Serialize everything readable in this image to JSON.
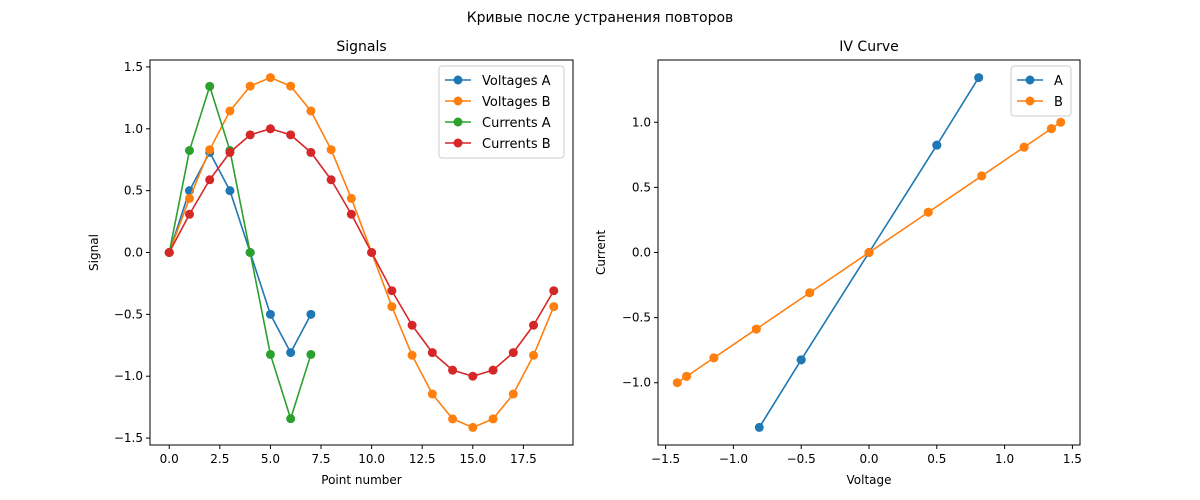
{
  "suptitle": "Кривые после устранения повторов",
  "chart_data": [
    {
      "type": "line",
      "title": "Signals",
      "xlabel": "Point number",
      "ylabel": "Signal",
      "xlim": [
        -0.95,
        19.95
      ],
      "ylim": [
        -1.556,
        1.556
      ],
      "xticks": [
        0,
        2.5,
        5,
        7.5,
        10,
        12.5,
        15,
        17.5
      ],
      "xtick_labels": [
        "0.0",
        "2.5",
        "5.0",
        "7.5",
        "10.0",
        "12.5",
        "15.0",
        "17.5"
      ],
      "yticks": [
        -1.5,
        -1.0,
        -0.5,
        0.0,
        0.5,
        1.0,
        1.5
      ],
      "ytick_labels": [
        "−1.5",
        "−1.0",
        "−0.5",
        "0.0",
        "0.5",
        "1.0",
        "1.5"
      ],
      "legend_position": "top-right",
      "series": [
        {
          "name": "Voltages A",
          "color": "#1f77b4",
          "x": [
            0,
            1,
            2,
            3,
            4,
            5,
            6,
            7
          ],
          "y": [
            0.0,
            0.5,
            0.809,
            0.5,
            0.0,
            -0.5,
            -0.809,
            -0.5
          ]
        },
        {
          "name": "Voltages B",
          "color": "#ff7f0e",
          "x": [
            0,
            1,
            2,
            3,
            4,
            5,
            6,
            7,
            8,
            9,
            10,
            11,
            12,
            13,
            14,
            15,
            16,
            17,
            18,
            19
          ],
          "y": [
            0.0,
            0.437,
            0.831,
            1.144,
            1.345,
            1.414,
            1.345,
            1.144,
            0.831,
            0.437,
            0.0,
            -0.437,
            -0.831,
            -1.144,
            -1.345,
            -1.414,
            -1.345,
            -1.144,
            -0.831,
            -0.437
          ]
        },
        {
          "name": "Currents A",
          "color": "#2ca02c",
          "x": [
            0,
            1,
            2,
            3,
            4,
            5,
            6,
            7
          ],
          "y": [
            0.0,
            0.824,
            1.343,
            0.824,
            0.0,
            -0.824,
            -1.343,
            -0.824
          ]
        },
        {
          "name": "Currents B",
          "color": "#d62728",
          "x": [
            0,
            1,
            2,
            3,
            4,
            5,
            6,
            7,
            8,
            9,
            10,
            11,
            12,
            13,
            14,
            15,
            16,
            17,
            18,
            19
          ],
          "y": [
            0.0,
            0.309,
            0.588,
            0.809,
            0.951,
            1.0,
            0.951,
            0.809,
            0.588,
            0.309,
            0.0,
            -0.309,
            -0.588,
            -0.809,
            -0.951,
            -1.0,
            -0.951,
            -0.809,
            -0.588,
            -0.309
          ]
        }
      ]
    },
    {
      "type": "line",
      "title": "IV Curve",
      "xlabel": "Voltage",
      "ylabel": "Current",
      "xlim": [
        -1.556,
        1.556
      ],
      "ylim": [
        -1.478,
        1.478
      ],
      "xticks": [
        -1.5,
        -1.0,
        -0.5,
        0.0,
        0.5,
        1.0,
        1.5
      ],
      "xtick_labels": [
        "−1.5",
        "−1.0",
        "−0.5",
        "0.0",
        "0.5",
        "1.0",
        "1.5"
      ],
      "yticks": [
        -1.0,
        -0.5,
        0.0,
        0.5,
        1.0
      ],
      "ytick_labels": [
        "−1.0",
        "−0.5",
        "0.0",
        "0.5",
        "1.0"
      ],
      "legend_position": "top-right",
      "series": [
        {
          "name": "A",
          "color": "#1f77b4",
          "x": [
            0.0,
            0.5,
            0.809,
            0.5,
            0.0,
            -0.5,
            -0.809,
            -0.5
          ],
          "y": [
            0.0,
            0.824,
            1.343,
            0.824,
            0.0,
            -0.824,
            -1.343,
            -0.824
          ]
        },
        {
          "name": "B",
          "color": "#ff7f0e",
          "x": [
            0.0,
            0.437,
            0.831,
            1.144,
            1.345,
            1.414,
            1.345,
            1.144,
            0.831,
            0.437,
            0.0,
            -0.437,
            -0.831,
            -1.144,
            -1.345,
            -1.414,
            -1.345,
            -1.144,
            -0.831,
            -0.437
          ],
          "y": [
            0.0,
            0.309,
            0.588,
            0.809,
            0.951,
            1.0,
            0.951,
            0.809,
            0.588,
            0.309,
            0.0,
            -0.309,
            -0.588,
            -0.809,
            -0.951,
            -1.0,
            -0.951,
            -0.809,
            -0.588,
            -0.309
          ]
        }
      ]
    }
  ]
}
